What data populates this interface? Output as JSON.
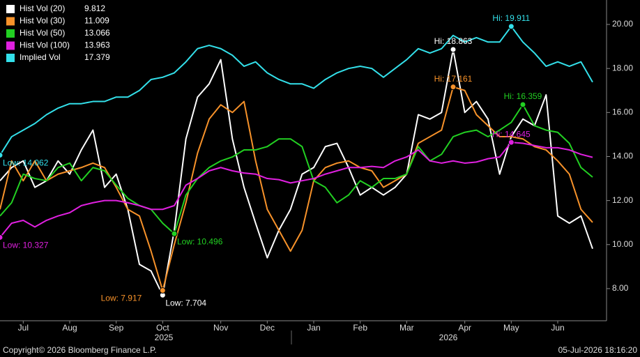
{
  "chart_data": {
    "type": "line",
    "categories": [
      null,
      null,
      "Jul",
      null,
      null,
      null,
      "Aug",
      null,
      null,
      null,
      "Sep",
      null,
      null,
      null,
      "Oct",
      null,
      null,
      null,
      null,
      "Nov",
      null,
      null,
      null,
      "Dec",
      null,
      null,
      null,
      "Jan",
      null,
      null,
      null,
      "Feb",
      null,
      null,
      null,
      "Mar",
      null,
      null,
      null,
      null,
      "Apr",
      null,
      null,
      null,
      "May",
      null,
      null,
      null,
      "Jun",
      null,
      null,
      null
    ],
    "x_group_labels": [
      "2025",
      "2026"
    ],
    "ylim": [
      6.54,
      21.11
    ],
    "yticks": [
      {
        "value": 8,
        "label": "8.00"
      },
      {
        "value": 10,
        "label": "10.00"
      },
      {
        "value": 12,
        "label": "12.00"
      },
      {
        "value": 14,
        "label": "14.00"
      },
      {
        "value": 16,
        "label": "16.00"
      },
      {
        "value": 18,
        "label": "18.00"
      },
      {
        "value": 20,
        "label": "20.00"
      }
    ],
    "grid": false,
    "legend": "top-left",
    "series": [
      {
        "name": "Hist Vol (20)",
        "color": "#ffffff",
        "values": [
          12.9,
          13.5,
          13.8,
          12.6,
          12.9,
          13.8,
          13.2,
          14.3,
          15.2,
          12.6,
          13.2,
          11.6,
          9.1,
          8.8,
          7.704,
          10.65,
          14.8,
          16.7,
          17.3,
          18.4,
          14.8,
          12.6,
          10.97,
          9.4,
          10.65,
          11.6,
          13.2,
          13.5,
          14.45,
          14.6,
          13.5,
          12.25,
          12.6,
          12.25,
          12.6,
          13.2,
          15.9,
          15.7,
          16.0,
          18.863,
          16.0,
          16.5,
          15.7,
          13.2,
          14.9,
          15.7,
          15.4,
          16.8,
          11.3,
          10.97,
          11.3,
          9.812
        ],
        "value_labels": [
          null,
          null,
          null,
          null,
          null,
          null,
          null,
          null,
          null,
          null,
          null,
          null,
          null,
          null,
          "Low: 7.704",
          null,
          null,
          null,
          null,
          null,
          null,
          null,
          null,
          null,
          null,
          null,
          null,
          null,
          null,
          null,
          null,
          null,
          null,
          null,
          null,
          null,
          null,
          null,
          null,
          "Hi: 18.863",
          null,
          null,
          null,
          null,
          null,
          null,
          null,
          null,
          null,
          null,
          null,
          null
        ]
      },
      {
        "name": "Hist Vol (30)",
        "color": "#f7922a",
        "values": [
          11.6,
          13.8,
          12.9,
          13.8,
          12.9,
          13.2,
          13.35,
          13.5,
          13.7,
          13.5,
          12.6,
          11.6,
          11.3,
          9.7,
          7.917,
          10.0,
          11.9,
          14.15,
          15.7,
          16.35,
          16.0,
          16.5,
          13.8,
          11.6,
          10.65,
          9.7,
          10.65,
          12.9,
          13.5,
          13.7,
          13.8,
          13.5,
          13.35,
          12.6,
          12.9,
          13.2,
          14.6,
          14.9,
          15.2,
          17.161,
          17.0,
          15.9,
          15.4,
          14.9,
          14.9,
          14.8,
          14.45,
          14.3,
          13.8,
          13.2,
          11.6,
          11.009
        ],
        "value_labels": [
          null,
          null,
          null,
          null,
          null,
          null,
          null,
          null,
          null,
          null,
          null,
          null,
          null,
          null,
          "Low: 7.917",
          null,
          null,
          null,
          null,
          null,
          null,
          null,
          null,
          null,
          null,
          null,
          null,
          null,
          null,
          null,
          null,
          null,
          null,
          null,
          null,
          null,
          null,
          null,
          null,
          "Hi: 17.161",
          null,
          null,
          null,
          null,
          null,
          null,
          null,
          null,
          null,
          null,
          null,
          null
        ]
      },
      {
        "name": "Hist Vol (50)",
        "color": "#22d022",
        "values": [
          11.3,
          11.9,
          13.2,
          13.0,
          12.9,
          13.5,
          13.7,
          12.9,
          13.5,
          13.35,
          12.7,
          12.1,
          11.77,
          11.6,
          10.97,
          10.496,
          12.25,
          13.0,
          13.5,
          13.8,
          13.98,
          14.3,
          14.3,
          14.45,
          14.8,
          14.8,
          14.45,
          12.9,
          12.6,
          11.9,
          12.25,
          12.9,
          12.6,
          13.0,
          13.0,
          13.2,
          14.45,
          13.8,
          14.1,
          14.9,
          15.1,
          15.2,
          14.9,
          15.2,
          15.55,
          16.359,
          15.4,
          15.2,
          15.1,
          14.6,
          13.5,
          13.066
        ],
        "value_labels": [
          null,
          null,
          null,
          null,
          null,
          null,
          null,
          null,
          null,
          null,
          null,
          null,
          null,
          null,
          null,
          "Low: 10.496",
          null,
          null,
          null,
          null,
          null,
          null,
          null,
          null,
          null,
          null,
          null,
          null,
          null,
          null,
          null,
          null,
          null,
          null,
          null,
          null,
          null,
          null,
          null,
          null,
          null,
          null,
          null,
          null,
          null,
          "Hi: 16.359",
          null,
          null,
          null,
          null,
          null,
          null
        ]
      },
      {
        "name": "Hist Vol (100)",
        "color": "#e020e0",
        "values": [
          10.327,
          10.97,
          11.1,
          10.8,
          11.1,
          11.3,
          11.45,
          11.77,
          11.9,
          12.0,
          12.0,
          11.9,
          11.77,
          11.6,
          11.6,
          11.77,
          12.7,
          13.0,
          13.35,
          13.5,
          13.35,
          13.25,
          13.2,
          13.0,
          12.95,
          12.8,
          12.9,
          13.0,
          13.2,
          13.35,
          13.5,
          13.5,
          13.55,
          13.5,
          13.8,
          13.98,
          14.3,
          13.8,
          13.7,
          13.8,
          13.7,
          13.75,
          13.9,
          13.98,
          14.645,
          14.6,
          14.5,
          14.4,
          14.4,
          14.3,
          14.1,
          13.963
        ],
        "value_labels": [
          "Low: 10.327",
          null,
          null,
          null,
          null,
          null,
          null,
          null,
          null,
          null,
          null,
          null,
          null,
          null,
          null,
          null,
          null,
          null,
          null,
          null,
          null,
          null,
          null,
          null,
          null,
          null,
          null,
          null,
          null,
          null,
          null,
          null,
          null,
          null,
          null,
          null,
          null,
          null,
          null,
          null,
          null,
          null,
          null,
          null,
          "Hi: 14.645",
          null,
          null,
          null,
          null,
          null,
          null,
          null
        ]
      },
      {
        "name": "Implied Vol",
        "color": "#33e0ea",
        "values": [
          14.062,
          14.9,
          15.2,
          15.5,
          15.9,
          16.2,
          16.4,
          16.4,
          16.5,
          16.5,
          16.7,
          16.7,
          17.0,
          17.5,
          17.6,
          17.8,
          18.3,
          18.9,
          19.05,
          18.9,
          18.6,
          18.1,
          18.3,
          17.8,
          17.5,
          17.3,
          17.3,
          17.1,
          17.5,
          17.8,
          18.0,
          18.1,
          18.0,
          17.6,
          18.0,
          18.4,
          18.9,
          18.7,
          18.9,
          19.5,
          19.2,
          19.4,
          19.2,
          19.2,
          19.911,
          19.2,
          18.7,
          18.1,
          18.3,
          18.1,
          18.3,
          17.379
        ],
        "value_labels": [
          "Low: 14.062",
          null,
          null,
          null,
          null,
          null,
          null,
          null,
          null,
          null,
          null,
          null,
          null,
          null,
          null,
          null,
          null,
          null,
          null,
          null,
          null,
          null,
          null,
          null,
          null,
          null,
          null,
          null,
          null,
          null,
          null,
          null,
          null,
          null,
          null,
          null,
          null,
          null,
          null,
          null,
          null,
          null,
          null,
          null,
          "Hi: 19.911",
          null,
          null,
          null,
          null,
          null,
          null,
          null
        ]
      }
    ]
  },
  "footer": {
    "copyright": "Copyright© 2026 Bloomberg Finance L.P.",
    "timestamp": "05-Jul-2026 18:16:20"
  }
}
